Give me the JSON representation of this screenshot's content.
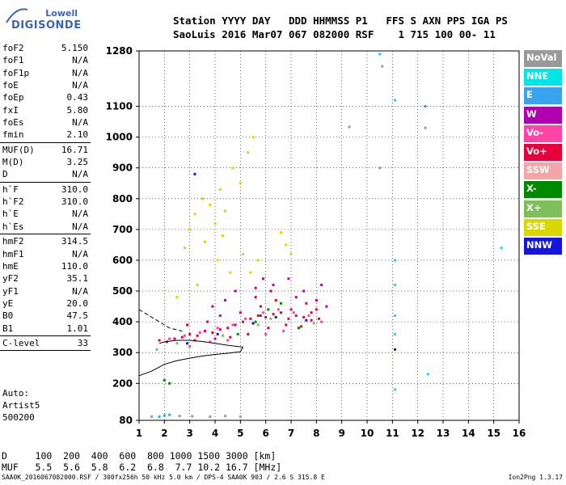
{
  "logo": {
    "top": "Lowell",
    "bottom": "DIGISONDE"
  },
  "header": {
    "line1": "Station YYYY DAY   DDD HHMMSS P1   FFS S AXN PPS IGA PS",
    "line2": "SaoLuis 2016 Mar07 067 082000 RSF    1 715 100 00- 11"
  },
  "params": [
    {
      "name": "foF2",
      "value": "5.150"
    },
    {
      "name": "foF1",
      "value": "N/A"
    },
    {
      "name": "foF1p",
      "value": "N/A"
    },
    {
      "name": "foE",
      "value": "N/A"
    },
    {
      "name": "foEp",
      "value": "0.43"
    },
    {
      "name": "fxI",
      "value": "5.80"
    },
    {
      "name": "foEs",
      "value": "N/A"
    },
    {
      "name": "fmin",
      "value": "2.10"
    },
    {
      "divider": true
    },
    {
      "name": "MUF(D)",
      "value": "16.71"
    },
    {
      "name": "M(D)",
      "value": "3.25"
    },
    {
      "name": "D",
      "value": "N/A"
    },
    {
      "divider": true
    },
    {
      "name": "h`F",
      "value": "310.0"
    },
    {
      "name": "h`F2",
      "value": "310.0"
    },
    {
      "name": "h`E",
      "value": "N/A"
    },
    {
      "name": "h`Es",
      "value": "N/A"
    },
    {
      "divider": true
    },
    {
      "name": "hmF2",
      "value": "314.5"
    },
    {
      "name": "hmF1",
      "value": "N/A"
    },
    {
      "name": "hmE",
      "value": "110.0"
    },
    {
      "name": "yF2",
      "value": "35.1"
    },
    {
      "name": "yF1",
      "value": "N/A"
    },
    {
      "name": "yE",
      "value": "20.0"
    },
    {
      "name": "B0",
      "value": "47.5"
    },
    {
      "name": "B1",
      "value": "1.01"
    },
    {
      "divider": true
    },
    {
      "name": "C-level",
      "value": "33"
    },
    {
      "divider": true
    }
  ],
  "auto": {
    "line1": "Auto:",
    "line2": "Artist5",
    "line3": "500200"
  },
  "legend": [
    {
      "label": "NoVal",
      "color": "#999999"
    },
    {
      "label": "NNE",
      "color": "#00e5e5"
    },
    {
      "label": "E",
      "color": "#3aa3f0"
    },
    {
      "label": "W",
      "color": "#b000b0"
    },
    {
      "label": "Vo-",
      "color": "#ff44a8"
    },
    {
      "label": "Vo+",
      "color": "#e8003a"
    },
    {
      "label": "SSW",
      "color": "#f4a6a6"
    },
    {
      "label": "X-",
      "color": "#008a00"
    },
    {
      "label": "X+",
      "color": "#7fbf5a"
    },
    {
      "label": "SSE",
      "color": "#d8d800"
    },
    {
      "label": "NNW",
      "color": "#1515e0"
    }
  ],
  "footer": {
    "d_row": "D     100  200  400  600  800 1000 1500 3000 [km]",
    "muf_row": "MUF   5.5  5.6  5.8  6.2  6.8  7.7 10.2 16.7 [MHz]",
    "file": "SAA0K_2016067082000.RSF / 300fx256h 50 kHz 5.0 km / DPS-4 SAA0K 903 / 2.6 S 315.8 E",
    "version": "Ion2Png 1.3.17"
  },
  "chart_data": {
    "type": "scatter",
    "title": "",
    "xlabel": "",
    "ylabel": "",
    "xlim": [
      1,
      16
    ],
    "ylim": [
      80,
      1280
    ],
    "xticks": [
      1,
      2,
      3,
      4,
      5,
      6,
      7,
      8,
      9,
      10,
      11,
      12,
      13,
      14,
      15,
      16
    ],
    "yticks": [
      80,
      200,
      300,
      400,
      500,
      600,
      700,
      800,
      900,
      1000,
      1100,
      1280
    ],
    "grid": true,
    "series": [
      {
        "name": "Vo+",
        "color": "#e8003a",
        "points": [
          [
            1.8,
            340
          ],
          [
            2.1,
            335
          ],
          [
            2.4,
            345
          ],
          [
            2.7,
            350
          ],
          [
            3.0,
            360
          ],
          [
            3.3,
            355
          ],
          [
            3.6,
            370
          ],
          [
            3.9,
            365
          ],
          [
            4.2,
            375
          ],
          [
            4.5,
            380
          ],
          [
            4.8,
            390
          ],
          [
            5.1,
            400
          ],
          [
            5.4,
            410
          ],
          [
            5.7,
            420
          ],
          [
            6.0,
            415
          ],
          [
            6.3,
            425
          ],
          [
            6.6,
            430
          ],
          [
            6.9,
            410
          ],
          [
            7.2,
            420
          ],
          [
            7.5,
            415
          ],
          [
            7.8,
            405
          ],
          [
            8.1,
            410
          ],
          [
            3.2,
            340
          ],
          [
            4.0,
            345
          ],
          [
            4.6,
            350
          ],
          [
            5.3,
            360
          ],
          [
            6.1,
            380
          ],
          [
            6.8,
            390
          ],
          [
            7.4,
            385
          ],
          [
            5.8,
            450
          ],
          [
            6.4,
            470
          ],
          [
            7.0,
            440
          ],
          [
            4.2,
            420
          ],
          [
            3.7,
            400
          ],
          [
            2.9,
            390
          ],
          [
            5.0,
            430
          ],
          [
            5.6,
            480
          ],
          [
            6.2,
            500
          ],
          [
            7.6,
            460
          ],
          [
            8.0,
            440
          ]
        ]
      },
      {
        "name": "Vo-",
        "color": "#ff44a8",
        "points": [
          [
            2.2,
            345
          ],
          [
            2.8,
            355
          ],
          [
            3.4,
            365
          ],
          [
            4.1,
            380
          ],
          [
            4.7,
            390
          ],
          [
            5.2,
            410
          ],
          [
            5.9,
            430
          ],
          [
            6.5,
            440
          ],
          [
            7.1,
            430
          ],
          [
            7.7,
            420
          ],
          [
            8.2,
            400
          ],
          [
            3.0,
            320
          ],
          [
            3.8,
            335
          ],
          [
            4.5,
            340
          ],
          [
            6.0,
            360
          ],
          [
            6.7,
            370
          ],
          [
            7.3,
            380
          ]
        ]
      },
      {
        "name": "SSE",
        "color": "#d8d800",
        "points": [
          [
            3.0,
            700
          ],
          [
            3.2,
            750
          ],
          [
            3.5,
            800
          ],
          [
            3.8,
            780
          ],
          [
            4.0,
            720
          ],
          [
            4.2,
            830
          ],
          [
            4.4,
            760
          ],
          [
            4.7,
            900
          ],
          [
            5.0,
            850
          ],
          [
            5.3,
            950
          ],
          [
            5.5,
            1000
          ],
          [
            2.8,
            640
          ],
          [
            3.6,
            660
          ],
          [
            4.3,
            680
          ],
          [
            5.1,
            620
          ],
          [
            6.8,
            650
          ],
          [
            7.0,
            620
          ],
          [
            6.6,
            690
          ],
          [
            4.1,
            600
          ],
          [
            5.4,
            560
          ],
          [
            5.7,
            600
          ],
          [
            2.5,
            480
          ],
          [
            3.3,
            520
          ],
          [
            4.6,
            560
          ]
        ]
      },
      {
        "name": "W",
        "color": "#b000b0",
        "points": [
          [
            7.8,
            430
          ],
          [
            8.0,
            470
          ],
          [
            8.2,
            520
          ],
          [
            7.5,
            500
          ],
          [
            6.9,
            540
          ],
          [
            6.3,
            520
          ],
          [
            5.9,
            540
          ],
          [
            4.8,
            500
          ],
          [
            8.4,
            450
          ],
          [
            7.2,
            480
          ],
          [
            5.6,
            510
          ],
          [
            4.4,
            470
          ],
          [
            3.9,
            450
          ]
        ]
      },
      {
        "name": "X-",
        "color": "#008a00",
        "points": [
          [
            5.6,
            400
          ],
          [
            5.8,
            420
          ],
          [
            6.1,
            440
          ],
          [
            7.3,
            380
          ],
          [
            4.9,
            360
          ],
          [
            2.2,
            200
          ],
          [
            2.0,
            210
          ],
          [
            6.6,
            460
          ]
        ]
      },
      {
        "name": "X+",
        "color": "#7fbf5a",
        "points": [
          [
            1.7,
            310
          ],
          [
            2.5,
            330
          ],
          [
            5.7,
            390
          ],
          [
            6.2,
            410
          ],
          [
            7.9,
            395
          ],
          [
            4.3,
            355
          ]
        ]
      },
      {
        "name": "NNW",
        "color": "#1515e0",
        "points": [
          [
            2.9,
            330
          ],
          [
            4.1,
            360
          ],
          [
            5.5,
            395
          ],
          [
            6.4,
            415
          ],
          [
            7.6,
            405
          ],
          [
            11.1,
            310
          ],
          [
            3.2,
            880
          ]
        ]
      },
      {
        "name": "NNE",
        "color": "#00e5e5",
        "points": [
          [
            11.1,
            600
          ],
          [
            11.1,
            520
          ],
          [
            11.1,
            420
          ],
          [
            11.1,
            360
          ],
          [
            11.1,
            180
          ],
          [
            15.3,
            640
          ],
          [
            12.4,
            230
          ],
          [
            10.5,
            1270
          ],
          [
            11.1,
            1120
          ]
        ]
      },
      {
        "name": "E",
        "color": "#3aa3f0",
        "points": [
          [
            2.0,
            96
          ],
          [
            1.8,
            92
          ],
          [
            2.2,
            98
          ],
          [
            12.3,
            1100
          ]
        ]
      },
      {
        "name": "NoVal",
        "color": "#999999",
        "points": [
          [
            1.5,
            92
          ],
          [
            2.6,
            94
          ],
          [
            3.1,
            93
          ],
          [
            3.8,
            92
          ],
          [
            4.4,
            94
          ],
          [
            5.0,
            92
          ],
          [
            9.3,
            1033
          ],
          [
            12.3,
            1030
          ],
          [
            10.5,
            900
          ],
          [
            10.6,
            1230
          ]
        ]
      }
    ],
    "curves": {
      "trace": [
        [
          1.0,
          225
        ],
        [
          1.5,
          240
        ],
        [
          2.0,
          262
        ],
        [
          2.5,
          274
        ],
        [
          3.0,
          282
        ],
        [
          3.5,
          289
        ],
        [
          4.0,
          294
        ],
        [
          4.5,
          298
        ],
        [
          5.0,
          303
        ],
        [
          5.1,
          318
        ],
        [
          4.5,
          324
        ],
        [
          4.0,
          330
        ],
        [
          3.5,
          336
        ],
        [
          3.0,
          340
        ],
        [
          2.5,
          340
        ],
        [
          2.0,
          335
        ],
        [
          1.8,
          330
        ]
      ],
      "dashed": [
        [
          1.0,
          440
        ],
        [
          1.4,
          420
        ],
        [
          1.8,
          400
        ],
        [
          2.2,
          380
        ],
        [
          2.7,
          370
        ]
      ]
    }
  }
}
